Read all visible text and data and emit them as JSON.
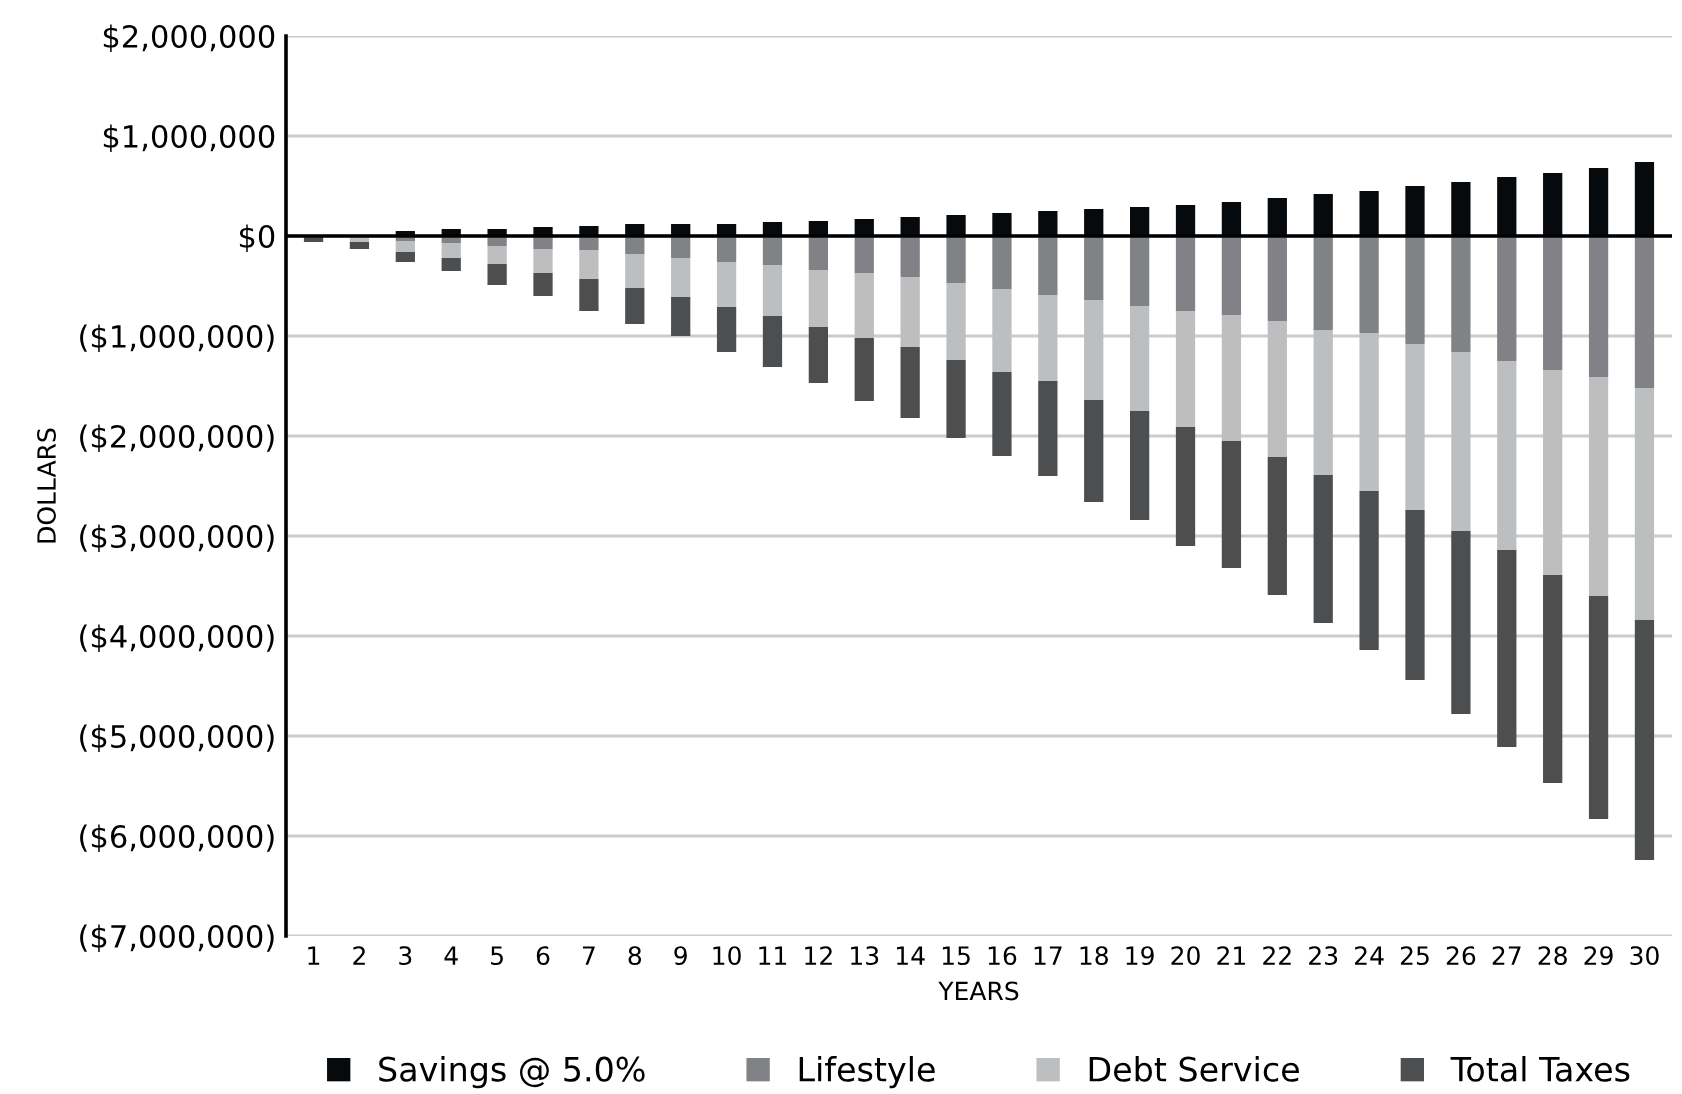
{
  "chart_data": {
    "type": "bar",
    "stacked": true,
    "xlabel": "YEARS",
    "ylabel": "DOLLARS",
    "categories": [
      "1",
      "2",
      "3",
      "4",
      "5",
      "6",
      "7",
      "8",
      "9",
      "10",
      "11",
      "12",
      "13",
      "14",
      "15",
      "16",
      "17",
      "18",
      "19",
      "20",
      "21",
      "22",
      "23",
      "24",
      "25",
      "26",
      "27",
      "28",
      "29",
      "30"
    ],
    "series": [
      {
        "name": "Savings @ 5.0%",
        "color": "#060a0c",
        "values": [
          10000,
          null,
          50000,
          70000,
          70000,
          90000,
          100000,
          120000,
          120000,
          120000,
          140000,
          150000,
          170000,
          190000,
          210000,
          230000,
          250000,
          270000,
          290000,
          310000,
          340000,
          380000,
          420000,
          450000,
          500000,
          540000,
          590000,
          630000,
          680000,
          740000
        ]
      },
      {
        "name": "Lifestyle",
        "color": "#808285",
        "values": [
          -10000,
          null,
          -50000,
          -70000,
          -100000,
          -130000,
          -140000,
          -180000,
          -220000,
          -260000,
          -290000,
          -340000,
          -370000,
          -410000,
          -470000,
          -530000,
          -590000,
          -640000,
          -700000,
          -750000,
          -790000,
          -850000,
          -940000,
          -970000,
          -1080000,
          -1160000,
          -1250000,
          -1340000,
          -1410000,
          -1520000
        ]
      },
      {
        "name": "Debt Service",
        "color": "#bcbec0",
        "values": [
          null,
          -60000,
          -110000,
          -150000,
          -180000,
          -240000,
          -290000,
          -340000,
          -390000,
          -450000,
          -510000,
          -570000,
          -650000,
          -700000,
          -770000,
          -830000,
          -860000,
          -1000000,
          -1050000,
          -1160000,
          -1260000,
          -1360000,
          -1450000,
          -1580000,
          -1660000,
          -1790000,
          -1890000,
          -2050000,
          -2190000,
          -2320000
        ]
      },
      {
        "name": "Total Taxes",
        "color": "#4d4e50",
        "values": [
          -50000,
          -70000,
          -100000,
          -130000,
          -210000,
          -230000,
          -320000,
          -360000,
          -390000,
          -450000,
          -510000,
          -560000,
          -630000,
          -710000,
          -780000,
          -840000,
          -950000,
          -1020000,
          -1090000,
          -1190000,
          -1270000,
          -1380000,
          -1480000,
          -1590000,
          -1700000,
          -1830000,
          -1970000,
          -2080000,
          -2230000,
          -2400000
        ]
      }
    ],
    "ylim": [
      -7000000,
      2000000
    ],
    "yticks": [
      {
        "value": -7000000,
        "label": "($7,000,000)"
      },
      {
        "value": -6000000,
        "label": "($6,000,000)"
      },
      {
        "value": -5000000,
        "label": "($5,000,000)"
      },
      {
        "value": -4000000,
        "label": "($4,000,000)"
      },
      {
        "value": -3000000,
        "label": "($3,000,000)"
      },
      {
        "value": -2000000,
        "label": "($2,000,000)"
      },
      {
        "value": -1000000,
        "label": "($1,000,000)"
      },
      {
        "value": 0,
        "label": "$0"
      },
      {
        "value": 1000000,
        "label": "$1,000,000"
      },
      {
        "value": 2000000,
        "label": "$2,000,000"
      }
    ],
    "grid": "y",
    "legend": "bottom"
  }
}
